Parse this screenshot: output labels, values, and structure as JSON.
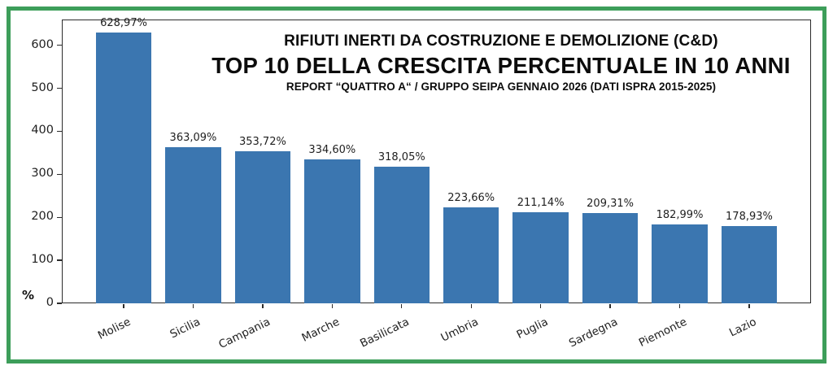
{
  "frame": {
    "border_color": "#3d9e5a",
    "background": "#ffffff"
  },
  "chart_data": {
    "type": "bar",
    "title": "RIFIUTI INERTI DA COSTRUZIONE E DEMOLIZIONE (C&D)",
    "subtitle": "TOP 10 DELLA CRESCITA PERCENTUALE IN 10 ANNI",
    "source_line": "REPORT “QUATTRO A“ / GRUPPO SEIPA GENNAIO 2026 (DATI ISPRA 2015-2025)",
    "categories": [
      "Molise",
      "Sicilia",
      "Campania",
      "Marche",
      "Basilicata",
      "Umbria",
      "Puglia",
      "Sardegna",
      "Piemonte",
      "Lazio"
    ],
    "values": [
      628.97,
      363.09,
      353.72,
      334.6,
      318.05,
      223.66,
      211.14,
      209.31,
      182.99,
      178.93
    ],
    "value_labels": [
      "628,97%",
      "363,09%",
      "353,72%",
      "334,60%",
      "318,05%",
      "223,66%",
      "211,14%",
      "209,31%",
      "182,99%",
      "178,93%"
    ],
    "xlabel": "",
    "ylabel": "%",
    "y_ticks": [
      0,
      100,
      200,
      300,
      400,
      500,
      600
    ],
    "ylim": [
      0,
      660
    ],
    "grid": false,
    "legend_position": "none",
    "bar_color": "#3b76b0",
    "axis_color": "#2b2b2b",
    "text_color": "#1f1f1f"
  }
}
